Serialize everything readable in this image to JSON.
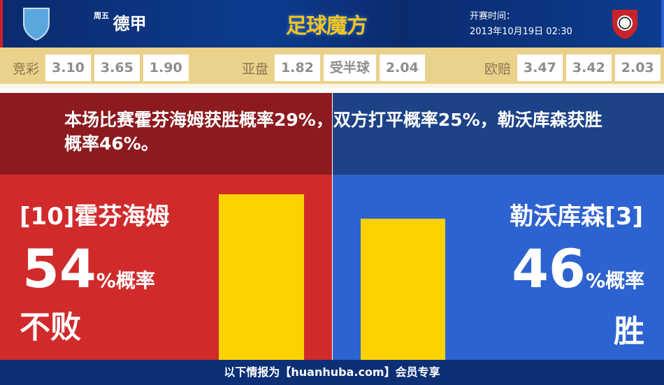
{
  "header": {
    "day": "周五",
    "league": "德甲",
    "brand": "足球魔方",
    "time_label": "开赛时间：",
    "time": "2013年10月19日 02:30",
    "home_logo": "hoffenheim-crest",
    "away_logo": "leverkusen-crest"
  },
  "odds": {
    "jingcai": {
      "label": "竞彩",
      "values": [
        "3.10",
        "3.65",
        "1.90"
      ]
    },
    "yapan": {
      "label": "亚盘",
      "values": [
        "1.82",
        "受半球",
        "2.04"
      ]
    },
    "oupei": {
      "label": "欧赔",
      "values": [
        "3.47",
        "3.42",
        "2.03"
      ]
    }
  },
  "summary": "本场比赛霍芬海姆获胜概率29%，双方打平概率25%，勒沃库森获胜概率46%。",
  "home": {
    "team": "[10]霍芬海姆",
    "percent": "54",
    "unit": "%概率",
    "result": "不败",
    "bar_value": 54,
    "color": "#d12a2b"
  },
  "away": {
    "team": "勒沃库森[3]",
    "percent": "46",
    "unit": "%概率",
    "result": "胜",
    "bar_value": 46,
    "color": "#2d63d0"
  },
  "footer": "以下情报为【huanhuba.com】会员专享"
}
